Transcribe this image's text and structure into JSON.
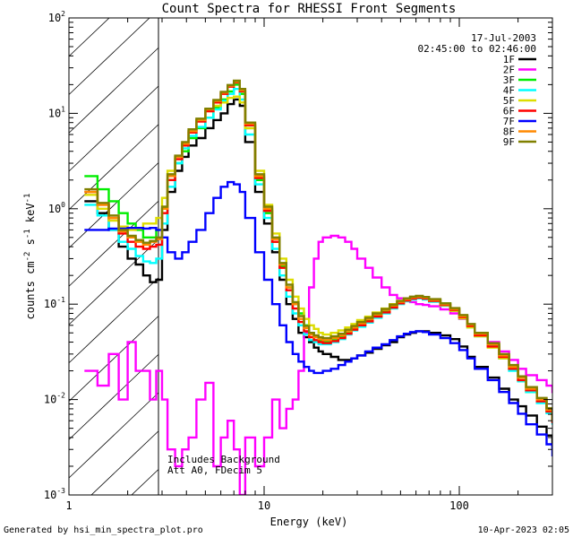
{
  "chart_data": {
    "type": "line",
    "title": "Count Spectra for RHESSI Front Segments",
    "xlabel": "Energy (keV)",
    "ylabel": {
      "base": "counts cm",
      "sup1": "-2",
      "mid1": " s",
      "sup2": "-1",
      "mid2": " keV",
      "sup3": "-1"
    },
    "xscale": "log",
    "yscale": "log",
    "xlim": [
      1,
      300
    ],
    "ylim": [
      0.001,
      100
    ],
    "x_ticks": [
      {
        "value": 1,
        "label": "1"
      },
      {
        "value": 10,
        "label": "10"
      },
      {
        "value": 100,
        "label": "100"
      }
    ],
    "y_ticks": [
      {
        "value": 0.001,
        "base": "10",
        "exp": "-3"
      },
      {
        "value": 0.01,
        "base": "10",
        "exp": "-2"
      },
      {
        "value": 0.1,
        "base": "10",
        "exp": "-1"
      },
      {
        "value": 1,
        "base": "10",
        "exp": "0"
      },
      {
        "value": 10,
        "base": "10",
        "exp": "1"
      },
      {
        "value": 100,
        "base": "10",
        "exp": "2"
      }
    ],
    "excluded_region": {
      "x_from": 1,
      "x_to": 3,
      "pattern": "hatched"
    },
    "header": {
      "date": "17-Jul-2003",
      "time_range": "02:45:00 to 02:46:00"
    },
    "annotations": [
      "Includes Background",
      "Att A0, FDecim 5"
    ],
    "energy_bins": [
      1.2,
      1.4,
      1.6,
      1.8,
      2.0,
      2.2,
      2.4,
      2.6,
      2.8,
      3.0,
      3.2,
      3.5,
      3.8,
      4.1,
      4.5,
      5.0,
      5.5,
      6.0,
      6.5,
      7.0,
      7.5,
      8.0,
      9.0,
      10.0,
      11.0,
      12.0,
      13.0,
      14.0,
      15.0,
      16.0,
      17.0,
      18.0,
      19.0,
      20.0,
      22.0,
      24.0,
      26.0,
      28.0,
      30.0,
      33.0,
      36.0,
      40.0,
      44.0,
      48.0,
      52.0,
      56.0,
      60.0,
      65.0,
      70.0,
      80.0,
      90.0,
      100.0,
      110.0,
      120.0,
      140.0,
      160.0,
      180.0,
      200.0,
      220.0,
      250.0,
      280.0,
      300.0
    ],
    "series": [
      {
        "name": "1F",
        "color": "#000000",
        "values": [
          1.2,
          0.9,
          0.6,
          0.4,
          0.3,
          0.26,
          0.2,
          0.17,
          0.18,
          0.6,
          1.5,
          2.5,
          3.5,
          4.6,
          5.5,
          7.0,
          8.5,
          10.0,
          12.5,
          14.0,
          12.0,
          5.0,
          1.5,
          0.7,
          0.35,
          0.18,
          0.1,
          0.07,
          0.05,
          0.045,
          0.04,
          0.035,
          0.032,
          0.03,
          0.028,
          0.026,
          0.026,
          0.027,
          0.029,
          0.031,
          0.034,
          0.037,
          0.04,
          0.045,
          0.048,
          0.05,
          0.052,
          0.052,
          0.05,
          0.047,
          0.043,
          0.036,
          0.028,
          0.022,
          0.017,
          0.013,
          0.01,
          0.0085,
          0.0068,
          0.0052,
          0.0042,
          0.0032
        ]
      },
      {
        "name": "2F",
        "color": "#ff00ff",
        "values": [
          0.02,
          0.014,
          0.03,
          0.01,
          0.04,
          0.02,
          0.02,
          0.01,
          0.02,
          0.01,
          0.003,
          0.002,
          0.003,
          0.004,
          0.01,
          0.015,
          0.002,
          0.004,
          0.006,
          0.003,
          0.001,
          0.004,
          0.002,
          0.004,
          0.01,
          0.005,
          0.008,
          0.01,
          0.02,
          0.05,
          0.15,
          0.3,
          0.45,
          0.5,
          0.52,
          0.5,
          0.45,
          0.38,
          0.3,
          0.24,
          0.19,
          0.15,
          0.125,
          0.115,
          0.11,
          0.105,
          0.1,
          0.098,
          0.095,
          0.088,
          0.08,
          0.07,
          0.06,
          0.05,
          0.04,
          0.032,
          0.026,
          0.021,
          0.018,
          0.016,
          0.014,
          0.012
        ]
      },
      {
        "name": "3F",
        "color": "#00ee00",
        "values": [
          2.2,
          1.6,
          1.2,
          0.9,
          0.7,
          0.6,
          0.5,
          0.5,
          0.6,
          1.0,
          2.0,
          3.0,
          4.0,
          5.5,
          7.0,
          9.0,
          11.5,
          14.0,
          17.0,
          20.0,
          16.0,
          7.0,
          2.0,
          0.9,
          0.45,
          0.25,
          0.15,
          0.1,
          0.08,
          0.06,
          0.05,
          0.045,
          0.042,
          0.04,
          0.042,
          0.045,
          0.05,
          0.055,
          0.06,
          0.067,
          0.075,
          0.085,
          0.095,
          0.105,
          0.112,
          0.118,
          0.12,
          0.118,
          0.112,
          0.102,
          0.09,
          0.075,
          0.06,
          0.048,
          0.037,
          0.028,
          0.021,
          0.016,
          0.012,
          0.0095,
          0.0075,
          0.006
        ]
      },
      {
        "name": "4F",
        "color": "#00ffff",
        "values": [
          1.1,
          0.85,
          0.6,
          0.45,
          0.38,
          0.32,
          0.28,
          0.27,
          0.3,
          0.7,
          1.7,
          3.0,
          4.3,
          5.8,
          7.2,
          9.0,
          11.0,
          13.5,
          16.0,
          18.0,
          14.0,
          6.0,
          1.8,
          0.8,
          0.38,
          0.2,
          0.12,
          0.08,
          0.06,
          0.048,
          0.042,
          0.04,
          0.038,
          0.038,
          0.04,
          0.043,
          0.048,
          0.053,
          0.058,
          0.064,
          0.072,
          0.08,
          0.09,
          0.1,
          0.107,
          0.112,
          0.115,
          0.112,
          0.106,
          0.096,
          0.085,
          0.071,
          0.057,
          0.046,
          0.036,
          0.027,
          0.02,
          0.0155,
          0.012,
          0.0092,
          0.0072,
          0.0056
        ]
      },
      {
        "name": "5F",
        "color": "#dddd00",
        "values": [
          1.4,
          1.0,
          0.75,
          0.65,
          0.6,
          0.62,
          0.7,
          0.7,
          0.8,
          1.3,
          2.5,
          3.5,
          4.8,
          6.5,
          8.5,
          10.5,
          12.0,
          13.0,
          14.5,
          15.0,
          13.0,
          7.0,
          2.5,
          1.1,
          0.55,
          0.3,
          0.18,
          0.12,
          0.09,
          0.07,
          0.06,
          0.055,
          0.05,
          0.048,
          0.05,
          0.053,
          0.057,
          0.062,
          0.068,
          0.074,
          0.082,
          0.09,
          0.1,
          0.108,
          0.114,
          0.118,
          0.118,
          0.115,
          0.108,
          0.097,
          0.085,
          0.071,
          0.057,
          0.046,
          0.035,
          0.027,
          0.021,
          0.016,
          0.0125,
          0.0098,
          0.0078,
          0.0062
        ]
      },
      {
        "name": "6F",
        "color": "#ff0000",
        "values": [
          1.5,
          1.1,
          0.8,
          0.55,
          0.45,
          0.4,
          0.38,
          0.4,
          0.42,
          0.9,
          2.0,
          3.3,
          4.6,
          6.3,
          8.2,
          10.5,
          13.0,
          16.0,
          19.0,
          21.0,
          17.0,
          7.5,
          2.1,
          0.95,
          0.45,
          0.24,
          0.14,
          0.09,
          0.065,
          0.052,
          0.045,
          0.042,
          0.04,
          0.039,
          0.041,
          0.044,
          0.049,
          0.054,
          0.06,
          0.066,
          0.074,
          0.082,
          0.092,
          0.102,
          0.109,
          0.114,
          0.117,
          0.114,
          0.108,
          0.098,
          0.087,
          0.073,
          0.059,
          0.047,
          0.036,
          0.028,
          0.021,
          0.016,
          0.0125,
          0.0096,
          0.0075,
          0.0058
        ]
      },
      {
        "name": "7F",
        "color": "#0000ff",
        "values": [
          0.6,
          0.6,
          0.62,
          0.62,
          0.63,
          0.63,
          0.62,
          0.63,
          0.6,
          0.5,
          0.35,
          0.3,
          0.35,
          0.45,
          0.6,
          0.9,
          1.3,
          1.7,
          1.9,
          1.8,
          1.5,
          0.8,
          0.35,
          0.18,
          0.1,
          0.06,
          0.04,
          0.03,
          0.025,
          0.022,
          0.02,
          0.019,
          0.019,
          0.02,
          0.021,
          0.023,
          0.025,
          0.027,
          0.029,
          0.032,
          0.035,
          0.038,
          0.042,
          0.046,
          0.049,
          0.051,
          0.052,
          0.051,
          0.048,
          0.044,
          0.039,
          0.033,
          0.027,
          0.021,
          0.016,
          0.012,
          0.0092,
          0.0071,
          0.0055,
          0.0043,
          0.0034,
          0.0026
        ]
      },
      {
        "name": "8F",
        "color": "#ff8800",
        "values": [
          1.5,
          1.1,
          0.8,
          0.58,
          0.5,
          0.45,
          0.42,
          0.45,
          0.48,
          1.0,
          2.2,
          3.5,
          4.8,
          6.5,
          8.5,
          11.0,
          13.5,
          16.5,
          19.5,
          21.5,
          17.5,
          7.8,
          2.2,
          1.0,
          0.48,
          0.26,
          0.15,
          0.1,
          0.07,
          0.056,
          0.048,
          0.045,
          0.043,
          0.042,
          0.044,
          0.047,
          0.052,
          0.057,
          0.063,
          0.07,
          0.078,
          0.087,
          0.097,
          0.106,
          0.113,
          0.118,
          0.12,
          0.117,
          0.111,
          0.1,
          0.089,
          0.075,
          0.061,
          0.049,
          0.038,
          0.029,
          0.022,
          0.017,
          0.013,
          0.01,
          0.0078,
          0.006
        ]
      },
      {
        "name": "9F",
        "color": "#808000",
        "values": [
          1.6,
          1.15,
          0.85,
          0.6,
          0.52,
          0.47,
          0.44,
          0.46,
          0.5,
          1.05,
          2.3,
          3.6,
          5.0,
          6.8,
          8.8,
          11.2,
          13.8,
          16.8,
          19.8,
          22.0,
          18.0,
          8.0,
          2.3,
          1.05,
          0.5,
          0.27,
          0.16,
          0.105,
          0.075,
          0.059,
          0.05,
          0.047,
          0.045,
          0.044,
          0.046,
          0.049,
          0.054,
          0.059,
          0.065,
          0.072,
          0.08,
          0.089,
          0.099,
          0.108,
          0.115,
          0.12,
          0.122,
          0.119,
          0.113,
          0.102,
          0.091,
          0.077,
          0.062,
          0.05,
          0.039,
          0.03,
          0.023,
          0.0175,
          0.0135,
          0.0104,
          0.0081,
          0.0063
        ]
      }
    ]
  },
  "footer": {
    "left": "Generated by hsi_min_spectra_plot.pro",
    "right": "10-Apr-2023 02:05"
  }
}
